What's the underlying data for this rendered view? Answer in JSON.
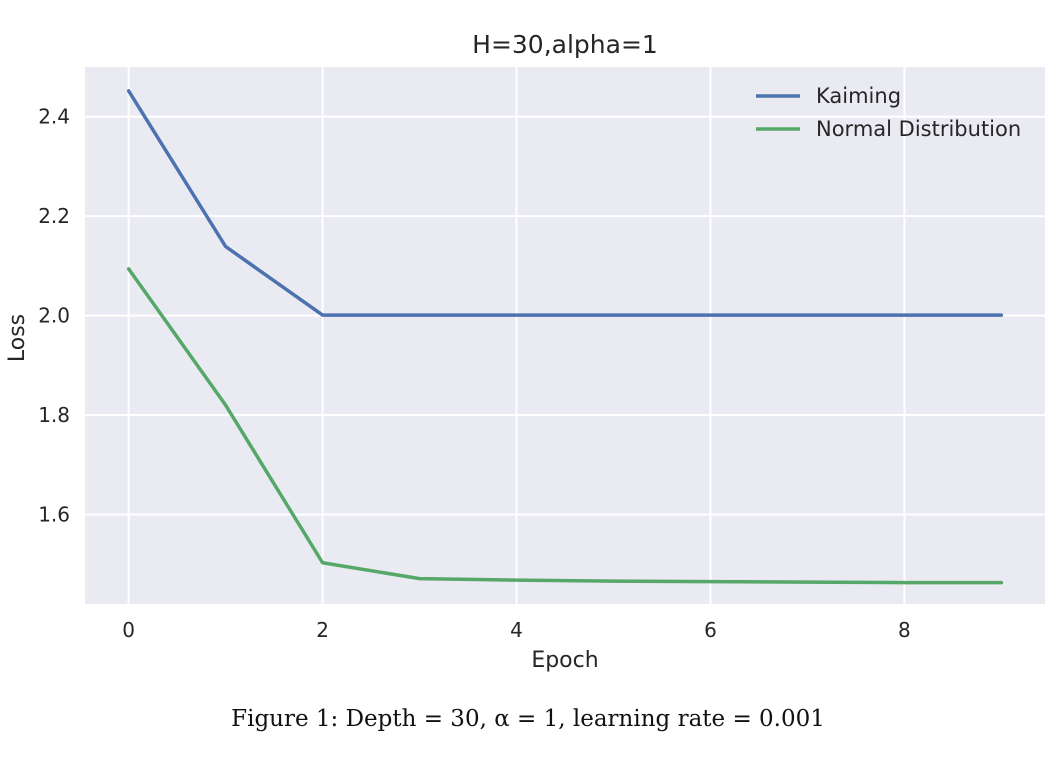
{
  "chart_data": {
    "type": "line",
    "title": "H=30,alpha=1",
    "xlabel": "Epoch",
    "ylabel": "Loss",
    "x": [
      0,
      1,
      2,
      3,
      4,
      5,
      6,
      7,
      8,
      9
    ],
    "xlim": [
      -0.45,
      9.45
    ],
    "ylim": [
      1.42,
      2.5
    ],
    "xticks": [
      0,
      2,
      4,
      6,
      8
    ],
    "yticks": [
      1.6,
      1.8,
      2.0,
      2.2,
      2.4
    ],
    "xtick_labels": [
      "0",
      "2",
      "4",
      "6",
      "8"
    ],
    "ytick_labels": [
      "1.6",
      "1.8",
      "2.0",
      "2.2",
      "2.4"
    ],
    "grid": true,
    "legend_position": "top-right",
    "series": [
      {
        "name": "Kaiming",
        "color": "#4c72b0",
        "values": [
          2.452,
          2.139,
          2.001,
          2.001,
          2.001,
          2.001,
          2.001,
          2.001,
          2.001,
          2.001
        ]
      },
      {
        "name": "Normal Distribution",
        "color": "#55a868",
        "values": [
          2.094,
          1.82,
          1.503,
          1.471,
          1.468,
          1.466,
          1.465,
          1.464,
          1.463,
          1.463
        ]
      }
    ],
    "plot_background": "#eaeaf2",
    "grid_color": "#ffffff"
  },
  "caption": "Figure 1: Depth = 30, α = 1, learning rate = 0.001"
}
